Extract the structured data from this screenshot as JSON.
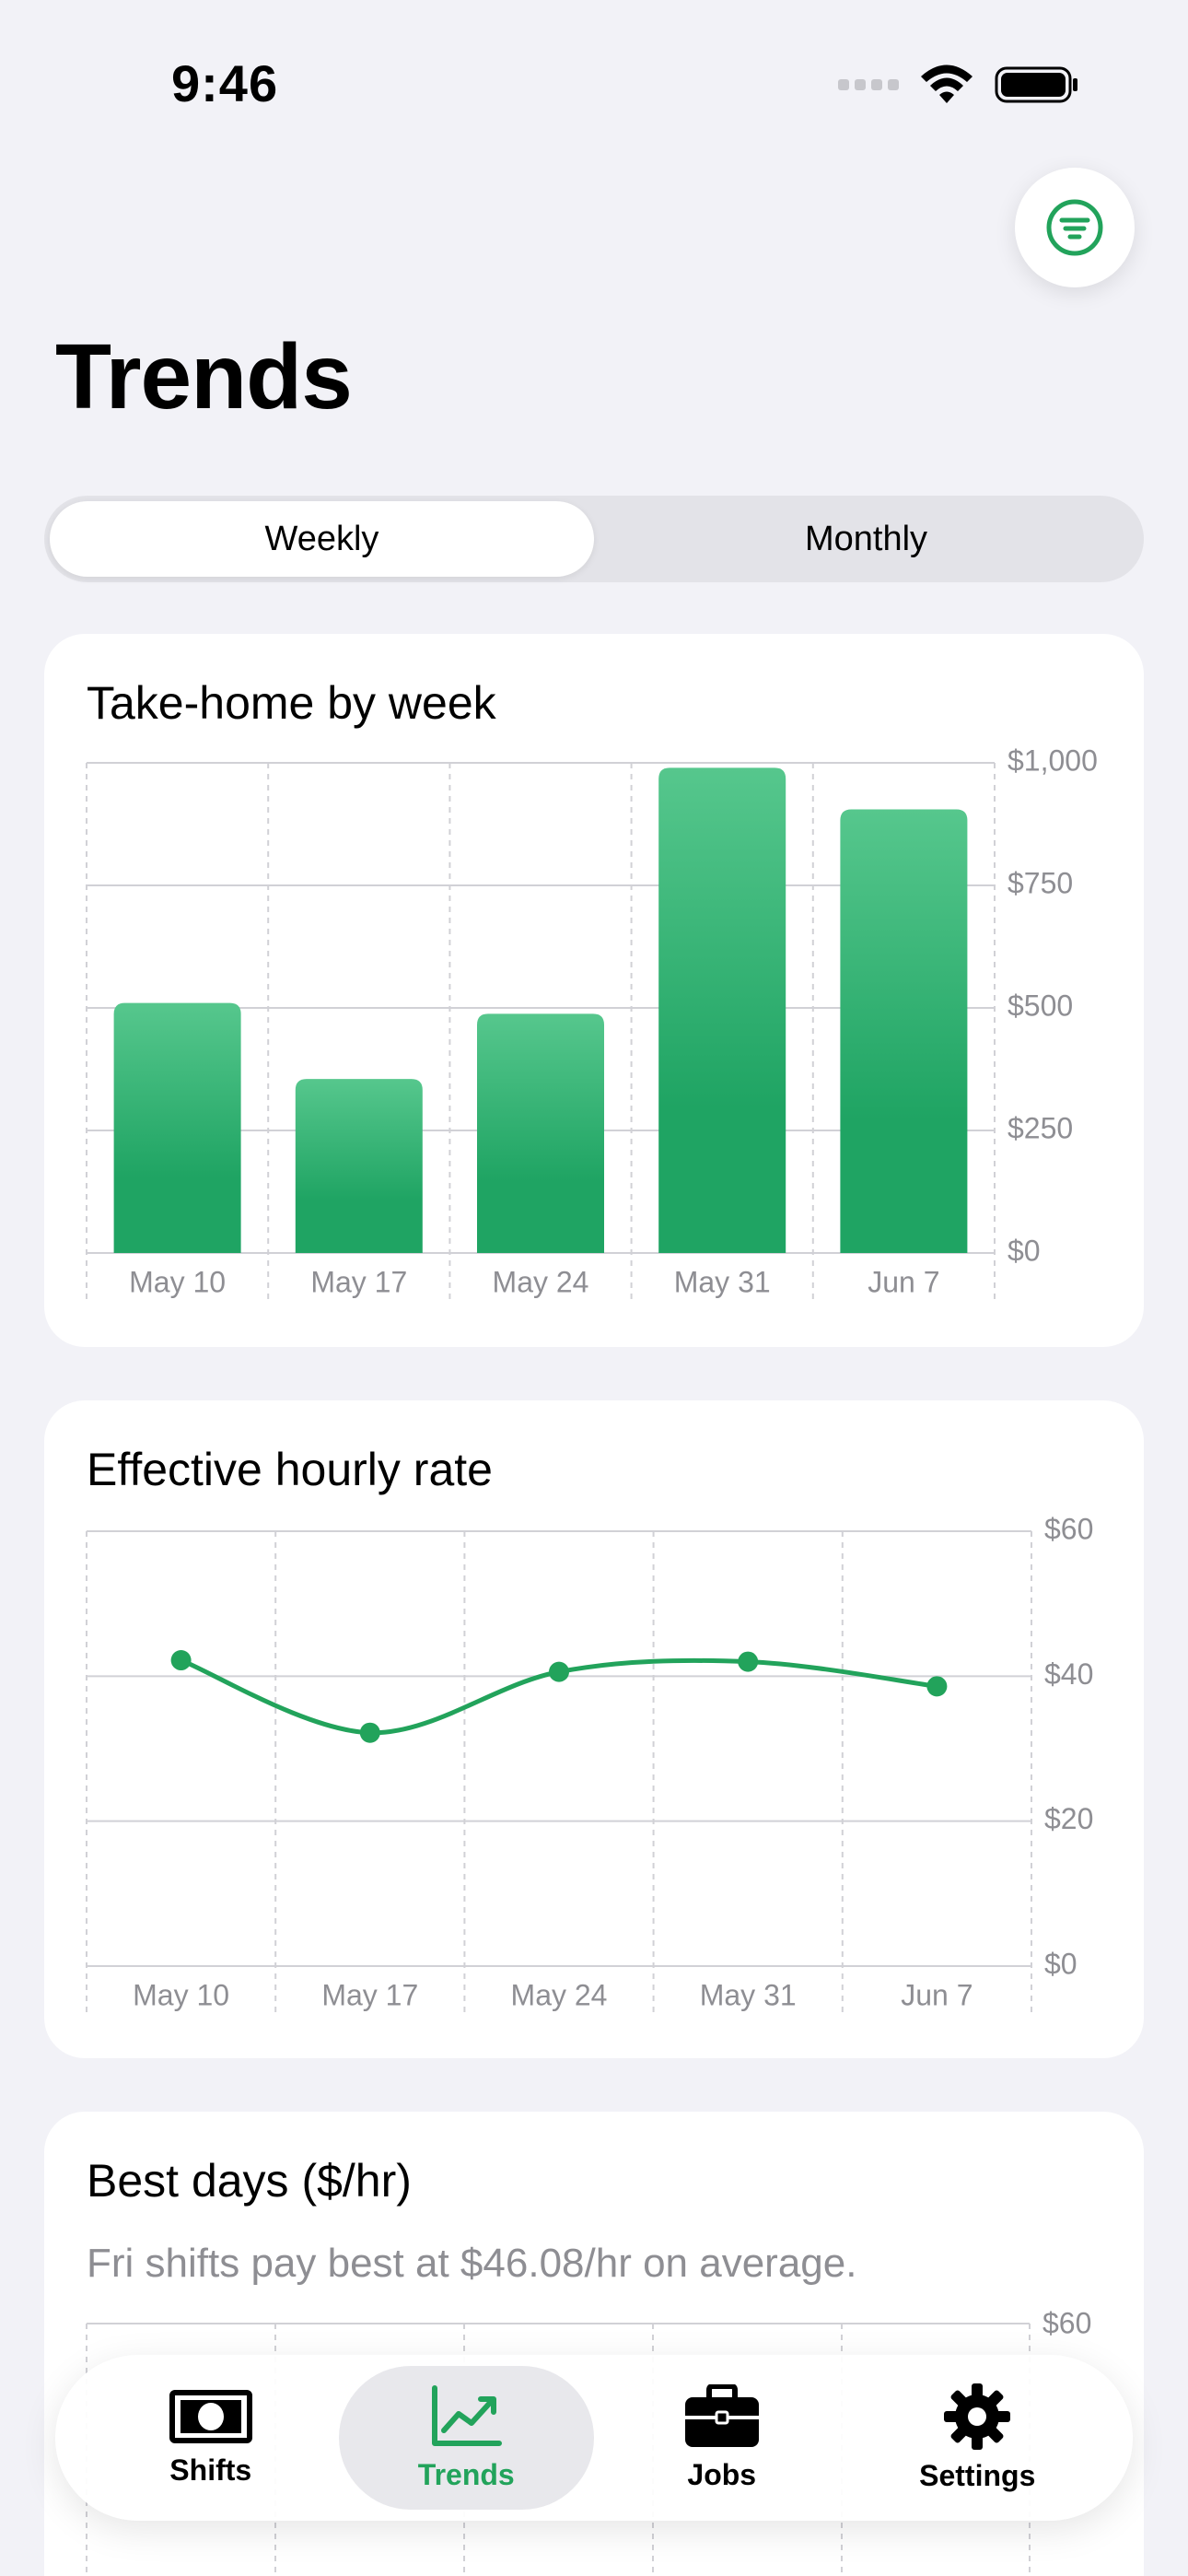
{
  "status": {
    "time": "9:46"
  },
  "header": {
    "title": "Trends",
    "filter_icon": "filter-lines-icon"
  },
  "segmented": {
    "options": [
      "Weekly",
      "Monthly"
    ],
    "selected": "Weekly"
  },
  "colors": {
    "accent": "#22a35b",
    "bar_top": "#56c78d",
    "bar_bottom": "#1fa463",
    "background": "#f2f2f7"
  },
  "cards": {
    "take_home": {
      "title": "Take-home by week"
    },
    "hourly": {
      "title": "Effective hourly rate"
    },
    "best_days": {
      "title": "Best days ($/hr)",
      "insight": "Fri shifts pay best at $46.08/hr on average.",
      "y_top_label": "$60"
    }
  },
  "chart_data": [
    {
      "type": "bar",
      "title": "Take-home by week",
      "categories": [
        "May 10",
        "May 17",
        "May 24",
        "May 31",
        "Jun 7"
      ],
      "values": [
        510,
        355,
        488,
        990,
        905
      ],
      "ylim": [
        0,
        1000
      ],
      "yticks": [
        0,
        250,
        500,
        750,
        1000
      ],
      "ytick_labels": [
        "$0",
        "$250",
        "$500",
        "$750",
        "$1,000"
      ],
      "grid": true
    },
    {
      "type": "line",
      "title": "Effective hourly rate",
      "categories": [
        "May 10",
        "May 17",
        "May 24",
        "May 31",
        "Jun 7"
      ],
      "values": [
        42.2,
        32.2,
        40.6,
        42.0,
        38.6
      ],
      "ylim": [
        0,
        60
      ],
      "yticks": [
        0,
        20,
        40,
        60
      ],
      "ytick_labels": [
        "$0",
        "$20",
        "$40",
        "$60"
      ],
      "grid": true
    }
  ],
  "tabs": [
    {
      "label": "Shifts",
      "icon": "banknote-icon"
    },
    {
      "label": "Trends",
      "icon": "chart-line-uptrend-icon",
      "active": true
    },
    {
      "label": "Jobs",
      "icon": "briefcase-icon"
    },
    {
      "label": "Settings",
      "icon": "gear-icon"
    }
  ]
}
